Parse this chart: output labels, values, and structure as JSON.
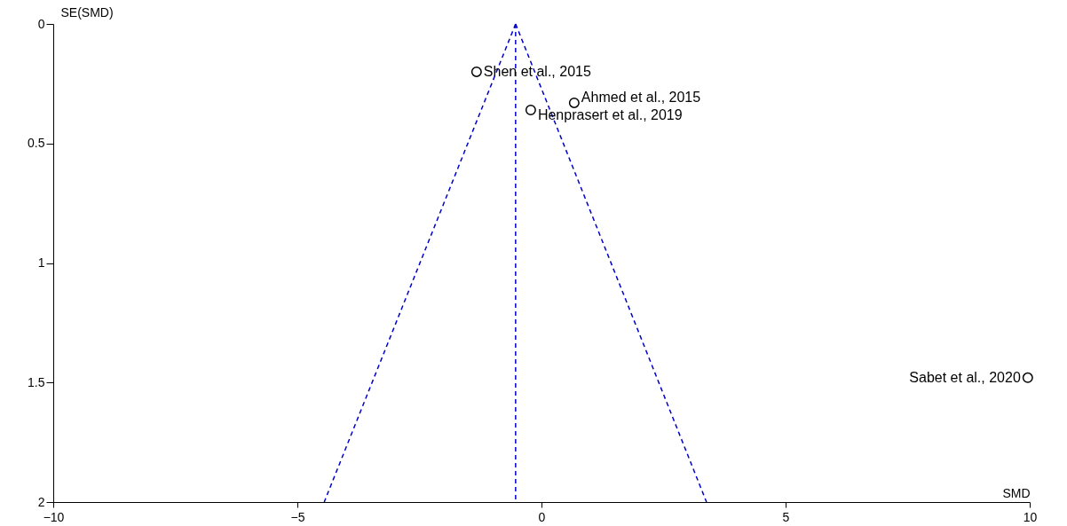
{
  "chart_data": {
    "type": "scatter",
    "xlabel": "SMD",
    "ylabel": "SE(SMD)",
    "xlim": [
      -10,
      10
    ],
    "xticks": [
      -10,
      -5,
      0,
      5,
      10
    ],
    "ylim": [
      2,
      0
    ],
    "yticks": [
      0,
      0.5,
      1,
      1.5,
      2
    ],
    "grid": false,
    "series": [
      {
        "marker": "circle",
        "color": "#000000",
        "x": [
          -1.33,
          0.67,
          -0.22,
          9.96
        ],
        "values": [
          0.2,
          0.33,
          0.36,
          1.48
        ]
      },
      {
        "type": "line",
        "color": "#0000cc",
        "line_style": "dashed",
        "x": [
          -0.53,
          -4.45
        ],
        "values": [
          0,
          2
        ]
      },
      {
        "type": "line",
        "color": "#0000cc",
        "line_style": "dashed",
        "x": [
          -0.53,
          3.38
        ],
        "values": [
          0,
          2
        ]
      },
      {
        "type": "line",
        "color": "#0000cc",
        "line_style": "dashed",
        "x": [
          -0.53,
          -0.53
        ],
        "values": [
          0,
          2
        ]
      }
    ],
    "annotations": [
      {
        "text": "Shen et al., 2015",
        "x": -1.33,
        "y": 0.2
      },
      {
        "text": "Ahmed et al., 2015",
        "x": 0.67,
        "y": 0.33
      },
      {
        "text": "Henprasert et al., 2019",
        "x": -0.22,
        "y": 0.36
      },
      {
        "text": "Sabet et al., 2020",
        "x": 9.96,
        "y": 1.48
      }
    ]
  }
}
